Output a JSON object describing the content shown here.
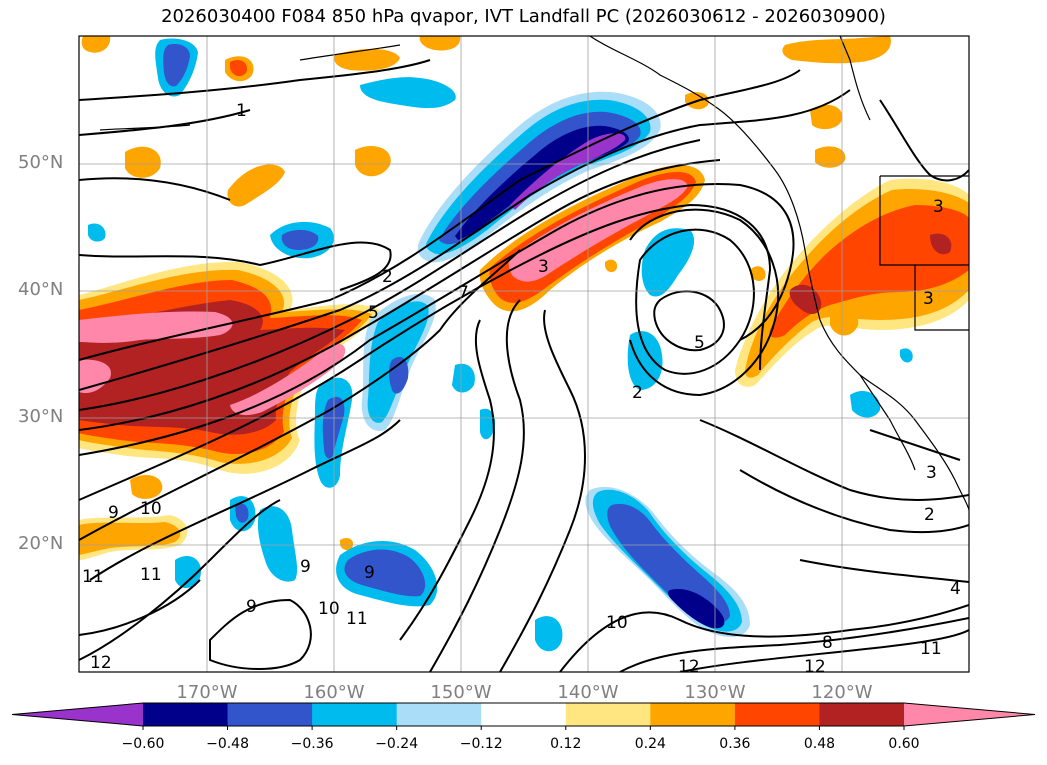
{
  "title": "2026030400 F084 850 hPa qvapor, IVT Landfall PC (2026030612 - 2026030900)",
  "lat_labels": [
    "50°N",
    "40°N",
    "30°N",
    "20°N"
  ],
  "lon_labels": [
    "170°W",
    "160°W",
    "150°W",
    "140°W",
    "130°W",
    "120°W"
  ],
  "colorbar": {
    "ticks": [
      "−0.60",
      "−0.48",
      "−0.36",
      "−0.24",
      "−0.12",
      "0.12",
      "0.24",
      "0.36",
      "0.48",
      "0.60"
    ],
    "colors": [
      "#9933cc",
      "#00008b",
      "#3355cc",
      "#00bbee",
      "#aaddf7",
      "#ffffff",
      "#ffe680",
      "#ffa500",
      "#ff4500",
      "#b22222",
      "#ff88aa"
    ]
  },
  "contour_labels": [
    "7",
    "2",
    "5",
    "5",
    "3",
    "3",
    "3",
    "2",
    "9",
    "10",
    "11",
    "11",
    "9",
    "9",
    "10",
    "11",
    "12",
    "10",
    "12",
    "8",
    "11",
    "4",
    "2",
    "1"
  ]
}
